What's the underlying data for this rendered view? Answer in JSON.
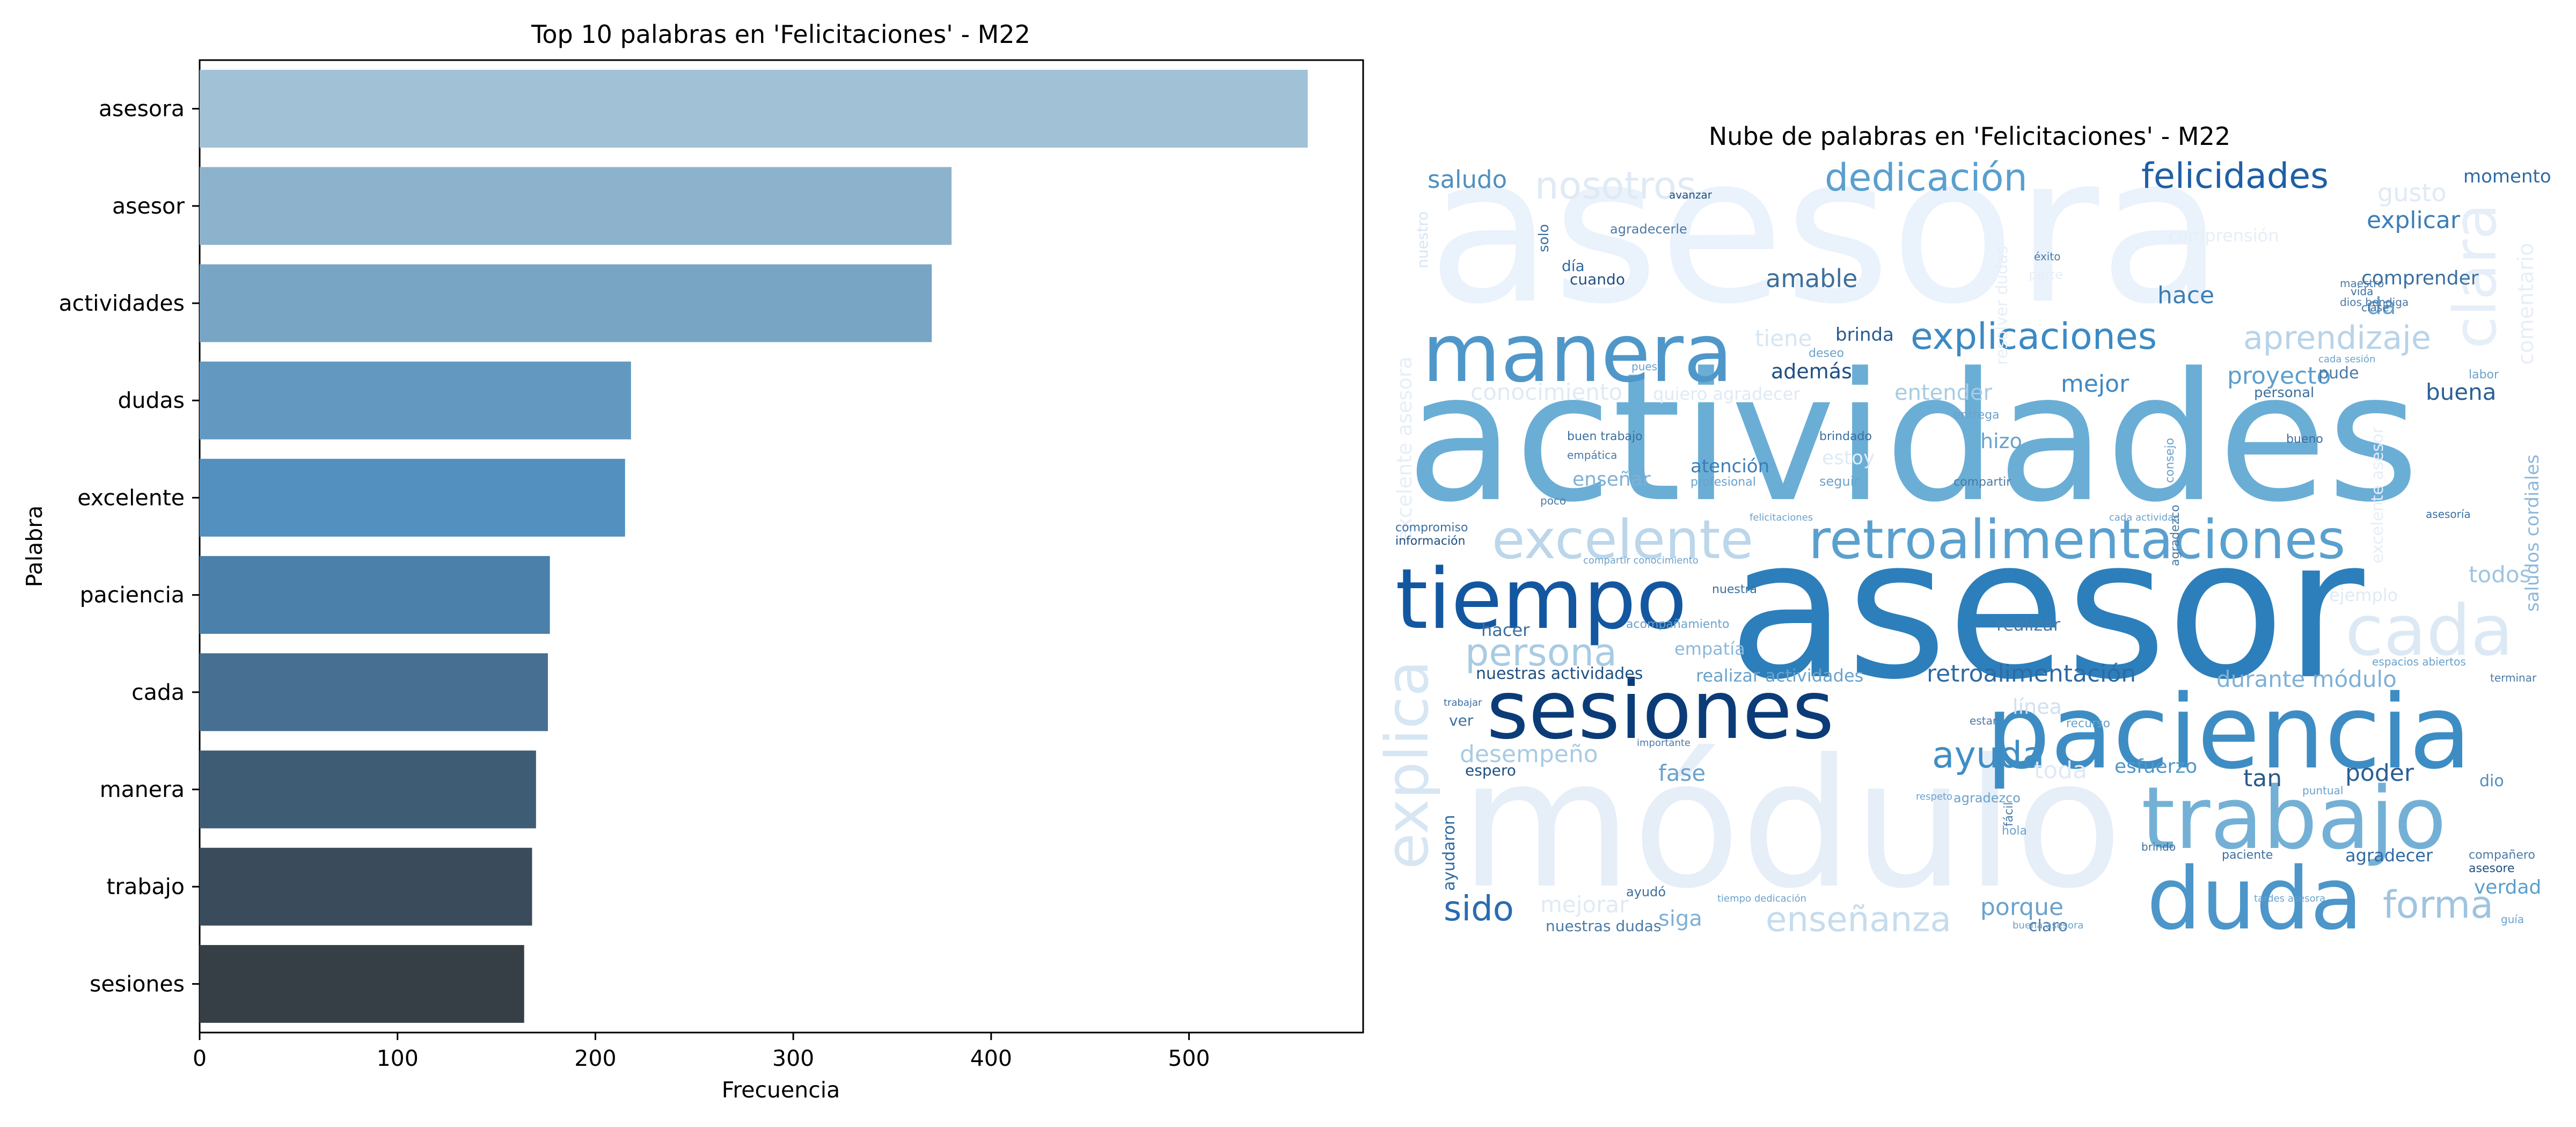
{
  "chart_data": [
    {
      "type": "bar",
      "orientation": "horizontal",
      "title": "Top 10 palabras en 'Felicitaciones' - M22",
      "xlabel": "Frecuencia",
      "ylabel": "Palabra",
      "xlim": [
        0,
        588
      ],
      "xticks": [
        0,
        100,
        200,
        300,
        400,
        500
      ],
      "grid": false,
      "categories": [
        "asesora",
        "asesor",
        "actividades",
        "dudas",
        "excelente",
        "paciencia",
        "cada",
        "manera",
        "trabajo",
        "sesiones"
      ],
      "values": [
        560,
        380,
        370,
        218,
        215,
        177,
        176,
        170,
        168,
        164
      ],
      "colors": [
        "#a0c1d6",
        "#8cb2cc",
        "#79a5c5",
        "#6399c0",
        "#5390bf",
        "#4a80aa",
        "#466f91",
        "#3f5c75",
        "#3a4c5c",
        "#363f46"
      ]
    },
    {
      "type": "wordcloud",
      "title": "Nube de palabras en 'Felicitaciones' - M22",
      "colormap": "Blues",
      "words": [
        "asesora",
        "actividades",
        "asesor",
        "módulo",
        "sesiones",
        "paciencia",
        "tiempo",
        "manera",
        "trabajo",
        "duda",
        "retroalimentaciones",
        "excelente",
        "cada",
        "clara",
        "explica",
        "persona",
        "nosotros",
        "dedicación",
        "felicidades",
        "saludo",
        "explicaciones",
        "aprendizaje",
        "amable",
        "forma",
        "ayuda",
        "explicar",
        "comprender",
        "momento",
        "gusto",
        "mejor",
        "proyecto",
        "buena",
        "además",
        "hace",
        "tiene",
        "conocimiento",
        "entender",
        "brinda",
        "comentario",
        "saludos cordiales",
        "excelente asesora",
        "retroalimentación",
        "durante módulo",
        "nuestras actividades",
        "realizar actividades",
        "todos",
        "empatía",
        "hacer",
        "realizar",
        "desempeño",
        "fase",
        "esfuerzo",
        "tan",
        "poder",
        "toda",
        "sido",
        "mejorar",
        "enseñanza",
        "siga",
        "porque",
        "ayudaron",
        "verdad",
        "agradecer",
        "ejemplo",
        "atención",
        "enseñar",
        "hizo",
        "claro",
        "nuestras dudas",
        "espero",
        "ver",
        "línea",
        "estoy",
        "día",
        "solo",
        "cuando",
        "quiero agradecer",
        "buen trabajo",
        "comprensión",
        "da",
        "nuestro",
        "resolver dudas",
        "excelente asesor",
        "dio",
        "puntual",
        "profesional",
        "compartir",
        "seguir",
        "compromiso",
        "información",
        "nuestra",
        "acompañamiento",
        "paciente",
        "agradezco",
        "ayudó",
        "dios bendiga",
        "clase",
        "deseo",
        "agradecerle",
        "avanzar",
        "éxito",
        "maestro",
        "vida",
        "asesoría",
        "personal",
        "pude",
        "labor",
        "bueno",
        "cada sesión",
        "cada actividad",
        "compartir conocimiento",
        "tardes asesora",
        "tiempo dedicación",
        "felicitaciones",
        "brindado",
        "importante",
        "trabajar",
        "empática",
        "estar",
        "recurso",
        "fácil",
        "terminar",
        "respeto",
        "entrega",
        "consejo",
        "espacios abiertos",
        "compañero",
        "guía",
        "hola",
        "buena asesora",
        "pues",
        "parte",
        "poco",
        "agradezco",
        "asesore",
        "brindo"
      ]
    }
  ]
}
